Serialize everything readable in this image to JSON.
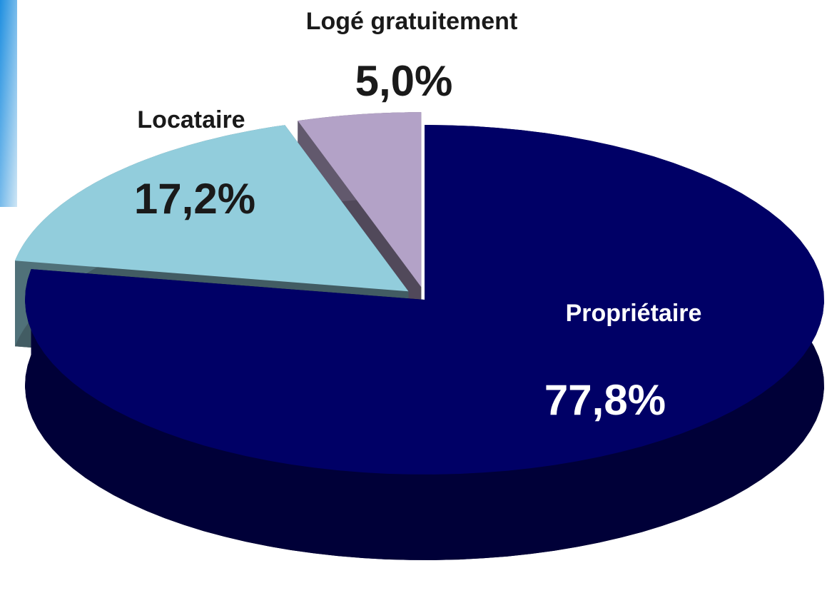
{
  "chart_data": {
    "type": "pie",
    "categories": [
      "Propriétaire",
      "Locataire",
      "Logé gratuitement"
    ],
    "values": [
      77.8,
      17.2,
      5.0
    ],
    "value_labels": [
      "77,8%",
      "17,2%",
      "5,0%"
    ],
    "colors": [
      "#000066",
      "#92cddc",
      "#b3a2c7"
    ]
  }
}
